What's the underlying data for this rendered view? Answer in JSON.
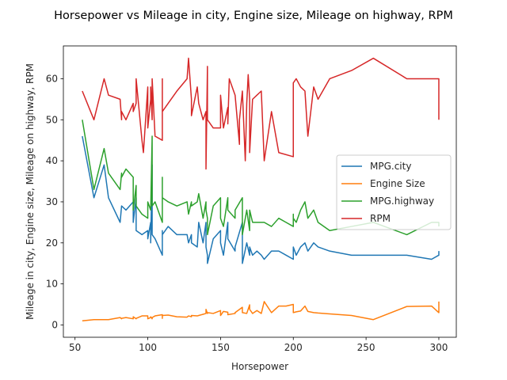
{
  "chart_data": {
    "type": "line",
    "title": "Horsepower vs Mileage in city, Engine size, Mileage on highway, RPM",
    "xlabel": "Horsepower",
    "ylabel": "Mileage in city, Engine size, Mileage on highway, RPM",
    "xlim": [
      42,
      312
    ],
    "ylim": [
      -3,
      68
    ],
    "xticks": [
      50,
      100,
      150,
      200,
      250,
      300
    ],
    "yticks": [
      0,
      10,
      20,
      30,
      40,
      50,
      60
    ],
    "grid": false,
    "legend_position": "center-right",
    "series": [
      {
        "name": "MPG.city",
        "color": "#1f77b4",
        "points": [
          [
            55,
            46
          ],
          [
            63,
            31
          ],
          [
            70,
            39
          ],
          [
            73,
            31
          ],
          [
            81,
            25
          ],
          [
            82,
            29
          ],
          [
            82,
            29
          ],
          [
            85,
            28
          ],
          [
            90,
            30
          ],
          [
            90,
            25
          ],
          [
            92,
            31
          ],
          [
            92,
            23
          ],
          [
            96,
            22
          ],
          [
            100,
            23
          ],
          [
            100,
            21
          ],
          [
            102,
            25
          ],
          [
            102,
            20
          ],
          [
            103,
            39
          ],
          [
            103,
            22
          ],
          [
            105,
            21
          ],
          [
            110,
            17
          ],
          [
            110,
            23
          ],
          [
            110,
            22
          ],
          [
            114,
            24
          ],
          [
            120,
            22
          ],
          [
            127,
            22
          ],
          [
            128,
            20
          ],
          [
            130,
            22
          ],
          [
            130,
            20
          ],
          [
            134,
            19
          ],
          [
            135,
            25
          ],
          [
            138,
            20
          ],
          [
            140,
            25
          ],
          [
            140,
            19
          ],
          [
            141,
            17
          ],
          [
            141,
            15
          ],
          [
            145,
            21
          ],
          [
            150,
            23
          ],
          [
            150,
            20
          ],
          [
            152,
            17
          ],
          [
            155,
            25
          ],
          [
            155,
            21
          ],
          [
            160,
            18
          ],
          [
            160,
            19
          ],
          [
            165,
            25
          ],
          [
            165,
            15
          ],
          [
            168,
            20
          ],
          [
            170,
            17
          ],
          [
            170,
            19
          ],
          [
            172,
            17
          ],
          [
            175,
            18
          ],
          [
            178,
            17
          ],
          [
            180,
            16
          ],
          [
            185,
            18
          ],
          [
            190,
            18
          ],
          [
            195,
            17
          ],
          [
            200,
            16
          ],
          [
            200,
            19
          ],
          [
            200,
            19
          ],
          [
            202,
            17
          ],
          [
            205,
            19
          ],
          [
            208,
            20
          ],
          [
            210,
            18
          ],
          [
            214,
            20
          ],
          [
            217,
            19
          ],
          [
            225,
            18
          ],
          [
            240,
            17
          ],
          [
            255,
            17
          ],
          [
            278,
            17
          ],
          [
            295,
            16
          ],
          [
            300,
            17
          ],
          [
            300,
            18
          ]
        ]
      },
      {
        "name": "Engine Size",
        "color": "#ff7f0e",
        "points": [
          [
            55,
            1.0
          ],
          [
            63,
            1.3
          ],
          [
            70,
            1.3
          ],
          [
            73,
            1.3
          ],
          [
            81,
            1.8
          ],
          [
            82,
            1.5
          ],
          [
            82,
            1.6
          ],
          [
            85,
            1.8
          ],
          [
            90,
            1.5
          ],
          [
            90,
            2.0
          ],
          [
            92,
            1.5
          ],
          [
            92,
            1.6
          ],
          [
            96,
            2.2
          ],
          [
            100,
            2.2
          ],
          [
            100,
            1.5
          ],
          [
            102,
            1.8
          ],
          [
            102,
            2.0
          ],
          [
            103,
            1.5
          ],
          [
            103,
            1.8
          ],
          [
            105,
            2.2
          ],
          [
            110,
            2.5
          ],
          [
            110,
            1.6
          ],
          [
            110,
            2.3
          ],
          [
            114,
            2.4
          ],
          [
            120,
            2.0
          ],
          [
            127,
            1.9
          ],
          [
            128,
            2.2
          ],
          [
            130,
            2.0
          ],
          [
            130,
            2.3
          ],
          [
            134,
            2.2
          ],
          [
            135,
            2.3
          ],
          [
            138,
            2.6
          ],
          [
            140,
            2.8
          ],
          [
            140,
            3.8
          ],
          [
            141,
            2.8
          ],
          [
            141,
            3.0
          ],
          [
            145,
            2.8
          ],
          [
            150,
            3.5
          ],
          [
            150,
            2.3
          ],
          [
            152,
            3.3
          ],
          [
            155,
            3.1
          ],
          [
            155,
            2.5
          ],
          [
            160,
            2.8
          ],
          [
            160,
            3.0
          ],
          [
            165,
            4.3
          ],
          [
            165,
            3.0
          ],
          [
            168,
            2.8
          ],
          [
            170,
            4.9
          ],
          [
            170,
            3.8
          ],
          [
            172,
            2.8
          ],
          [
            175,
            3.5
          ],
          [
            178,
            2.8
          ],
          [
            180,
            5.7
          ],
          [
            185,
            3.0
          ],
          [
            190,
            4.6
          ],
          [
            195,
            4.6
          ],
          [
            200,
            5.0
          ],
          [
            200,
            3.0
          ],
          [
            200,
            3.0
          ],
          [
            202,
            3.2
          ],
          [
            205,
            3.4
          ],
          [
            208,
            4.6
          ],
          [
            210,
            3.3
          ],
          [
            214,
            3.0
          ],
          [
            217,
            2.9
          ],
          [
            225,
            2.7
          ],
          [
            240,
            2.3
          ],
          [
            255,
            1.3
          ],
          [
            278,
            4.5
          ],
          [
            295,
            4.6
          ],
          [
            300,
            3.0
          ],
          [
            300,
            5.7
          ]
        ]
      },
      {
        "name": "MPG.highway",
        "color": "#2ca02c",
        "points": [
          [
            55,
            50
          ],
          [
            63,
            33
          ],
          [
            70,
            43
          ],
          [
            73,
            37
          ],
          [
            81,
            33
          ],
          [
            82,
            37
          ],
          [
            82,
            36
          ],
          [
            85,
            38
          ],
          [
            90,
            36
          ],
          [
            90,
            28
          ],
          [
            92,
            34
          ],
          [
            92,
            29
          ],
          [
            96,
            27
          ],
          [
            100,
            26
          ],
          [
            100,
            30
          ],
          [
            102,
            28
          ],
          [
            102,
            28
          ],
          [
            103,
            46
          ],
          [
            103,
            29
          ],
          [
            105,
            30
          ],
          [
            110,
            25
          ],
          [
            110,
            36
          ],
          [
            110,
            31
          ],
          [
            114,
            30
          ],
          [
            120,
            29
          ],
          [
            127,
            30
          ],
          [
            128,
            27
          ],
          [
            130,
            30
          ],
          [
            130,
            29
          ],
          [
            134,
            30
          ],
          [
            135,
            32
          ],
          [
            138,
            26
          ],
          [
            140,
            30
          ],
          [
            140,
            28
          ],
          [
            141,
            26
          ],
          [
            141,
            22
          ],
          [
            145,
            29
          ],
          [
            150,
            31
          ],
          [
            150,
            26
          ],
          [
            152,
            24
          ],
          [
            155,
            31
          ],
          [
            155,
            28
          ],
          [
            160,
            26
          ],
          [
            160,
            28
          ],
          [
            165,
            31
          ],
          [
            165,
            22
          ],
          [
            168,
            28
          ],
          [
            170,
            23
          ],
          [
            170,
            28
          ],
          [
            172,
            25
          ],
          [
            175,
            25
          ],
          [
            178,
            25
          ],
          [
            180,
            25
          ],
          [
            185,
            24
          ],
          [
            190,
            26
          ],
          [
            195,
            25
          ],
          [
            200,
            24
          ],
          [
            200,
            27
          ],
          [
            200,
            26
          ],
          [
            202,
            25
          ],
          [
            205,
            28
          ],
          [
            208,
            30
          ],
          [
            210,
            26
          ],
          [
            214,
            28
          ],
          [
            217,
            25
          ],
          [
            225,
            23
          ],
          [
            240,
            24
          ],
          [
            255,
            25
          ],
          [
            278,
            22
          ],
          [
            295,
            25
          ],
          [
            300,
            25
          ],
          [
            300,
            24
          ]
        ]
      },
      {
        "name": "RPM",
        "color": "#d62728",
        "points": [
          [
            55,
            57
          ],
          [
            63,
            50
          ],
          [
            70,
            60
          ],
          [
            73,
            56
          ],
          [
            81,
            55
          ],
          [
            82,
            50
          ],
          [
            82,
            52
          ],
          [
            85,
            50
          ],
          [
            90,
            54
          ],
          [
            90,
            52
          ],
          [
            92,
            54
          ],
          [
            92,
            60
          ],
          [
            96,
            45
          ],
          [
            97,
            42
          ],
          [
            100,
            58
          ],
          [
            100,
            48
          ],
          [
            102,
            55
          ],
          [
            102,
            58
          ],
          [
            103,
            50
          ],
          [
            103,
            60
          ],
          [
            105,
            46
          ],
          [
            110,
            45
          ],
          [
            110,
            60
          ],
          [
            110,
            52
          ],
          [
            114,
            54
          ],
          [
            120,
            57
          ],
          [
            127,
            60
          ],
          [
            128,
            65
          ],
          [
            130,
            55
          ],
          [
            130,
            51
          ],
          [
            134,
            58
          ],
          [
            135,
            54
          ],
          [
            138,
            50
          ],
          [
            140,
            52
          ],
          [
            140,
            38
          ],
          [
            141,
            63
          ],
          [
            141,
            50
          ],
          [
            145,
            48
          ],
          [
            150,
            48
          ],
          [
            150,
            56
          ],
          [
            152,
            48
          ],
          [
            155,
            53
          ],
          [
            155,
            49
          ],
          [
            156,
            60
          ],
          [
            160,
            56
          ],
          [
            163,
            44
          ],
          [
            163,
            50
          ],
          [
            165,
            57
          ],
          [
            167,
            40
          ],
          [
            168,
            54
          ],
          [
            169,
            61
          ],
          [
            170,
            55
          ],
          [
            170,
            42
          ],
          [
            172,
            55
          ],
          [
            175,
            56
          ],
          [
            178,
            57
          ],
          [
            180,
            40
          ],
          [
            185,
            52
          ],
          [
            190,
            42
          ],
          [
            200,
            41
          ],
          [
            200,
            55
          ],
          [
            200,
            59
          ],
          [
            202,
            60
          ],
          [
            205,
            58
          ],
          [
            208,
            57
          ],
          [
            210,
            46
          ],
          [
            214,
            58
          ],
          [
            217,
            55
          ],
          [
            225,
            60
          ],
          [
            240,
            62
          ],
          [
            255,
            65
          ],
          [
            278,
            60
          ],
          [
            300,
            60
          ],
          [
            300,
            50
          ]
        ]
      }
    ]
  }
}
